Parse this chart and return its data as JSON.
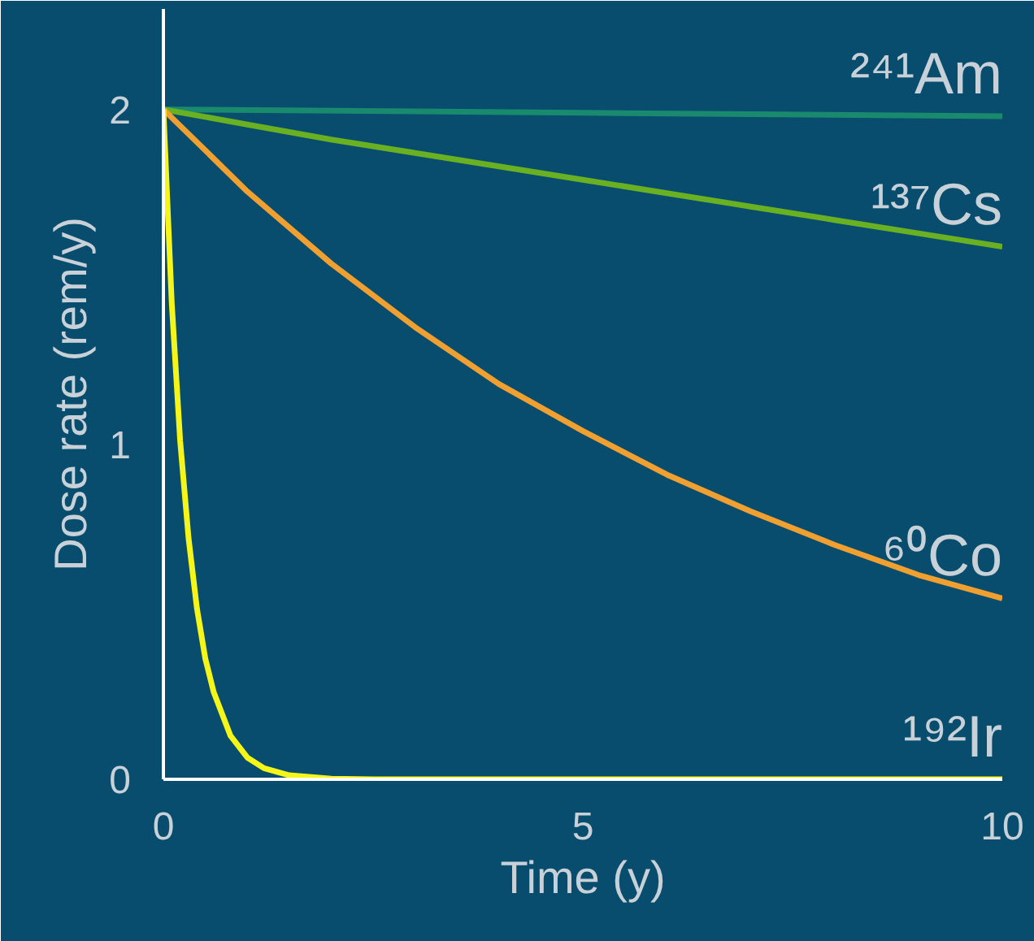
{
  "chart_data": {
    "type": "line",
    "xlabel": "Time (y)",
    "ylabel": "Dose rate (rem/y)",
    "xlim": [
      0,
      10
    ],
    "ylim": [
      0,
      2.3
    ],
    "xticks": [
      0,
      5,
      10
    ],
    "yticks": [
      0,
      1,
      2
    ],
    "marker": "none",
    "line_style": "solid",
    "series": [
      {
        "name": "²⁴¹Am",
        "color": "#1a8a6e",
        "x": [
          0,
          5,
          10
        ],
        "values": [
          2,
          1.99,
          1.98
        ]
      },
      {
        "name": "¹³⁷Cs",
        "color": "#6ab023",
        "x": [
          0,
          1,
          2,
          3,
          4,
          5,
          6,
          7,
          8,
          9,
          10
        ],
        "values": [
          2,
          1.955,
          1.91,
          1.87,
          1.83,
          1.79,
          1.75,
          1.71,
          1.67,
          1.63,
          1.59
        ]
      },
      {
        "name": "⁶⁰Co",
        "color": "#f0a030",
        "x": [
          0,
          1,
          2,
          3,
          4,
          5,
          6,
          7,
          8,
          9,
          10
        ],
        "values": [
          2,
          1.755,
          1.54,
          1.35,
          1.18,
          1.04,
          0.91,
          0.8,
          0.7,
          0.61,
          0.54
        ]
      },
      {
        "name": "¹⁹²Ir",
        "color": "#f5f51a",
        "x": [
          0,
          0.1,
          0.2,
          0.3,
          0.4,
          0.5,
          0.6,
          0.8,
          1.0,
          1.2,
          1.5,
          2,
          2.5,
          3,
          10
        ],
        "values": [
          2,
          1.42,
          1.01,
          0.72,
          0.51,
          0.36,
          0.26,
          0.13,
          0.065,
          0.033,
          0.012,
          0.002,
          0,
          0,
          0
        ]
      }
    ]
  }
}
